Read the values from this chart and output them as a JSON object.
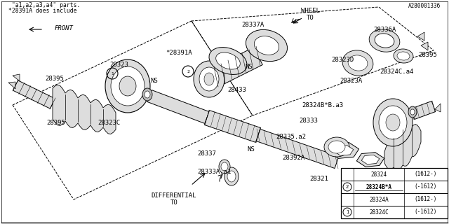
{
  "bg_color": "#ffffff",
  "line_color": "#000000",
  "gray": "#888888",
  "light_gray": "#cccccc",
  "footnote_code": "A280001336",
  "footnote_text1": "*28391A does include",
  "footnote_text2": " \"a1,a2,a3,a4\" parts.",
  "parts_table": [
    {
      "circle": "1",
      "part": "28324C",
      "spec": "(-1612)"
    },
    {
      "circle": "",
      "part": "28324A",
      "spec": "(1612-)"
    },
    {
      "circle": "2",
      "part": "28324B*A",
      "spec": "(-1612)"
    },
    {
      "circle": "",
      "part": "28324",
      "spec": "(1612-)"
    }
  ],
  "figsize": [
    6.4,
    3.2
  ],
  "dpi": 100
}
